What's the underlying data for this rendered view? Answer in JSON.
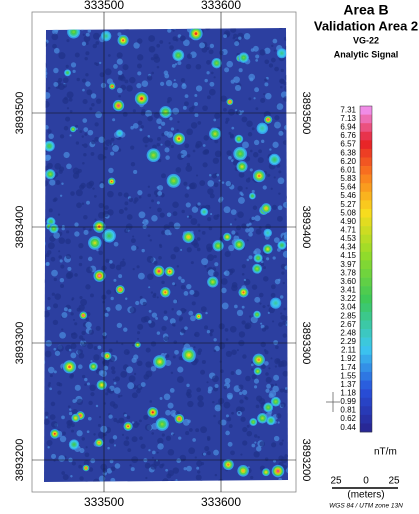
{
  "header": {
    "title": "Area B",
    "subtitle": "Validation Area 2",
    "id": "VG-22",
    "quantity": "Analytic Signal"
  },
  "map": {
    "x_labels": [
      "333500",
      "333600"
    ],
    "y_labels": [
      "3893500",
      "3893400",
      "3893300",
      "3893200"
    ]
  },
  "legend": {
    "labels": [
      "7.31",
      "7.13",
      "6.94",
      "6.76",
      "6.57",
      "6.38",
      "6.20",
      "6.01",
      "5.83",
      "5.64",
      "5.46",
      "5.27",
      "5.08",
      "4.90",
      "4.71",
      "4.53",
      "4.34",
      "4.15",
      "3.97",
      "3.78",
      "3.60",
      "3.41",
      "3.22",
      "3.04",
      "2.85",
      "2.67",
      "2.48",
      "2.29",
      "2.11",
      "1.92",
      "1.74",
      "1.55",
      "1.37",
      "1.18",
      "0.99",
      "0.81",
      "0.62",
      "0.44"
    ],
    "unit": "nT/m"
  },
  "scale_bar": {
    "labels": [
      "25",
      "0",
      "25"
    ],
    "unit": "(meters)",
    "projection": "WGS 84 / UTM zone 13N"
  }
}
